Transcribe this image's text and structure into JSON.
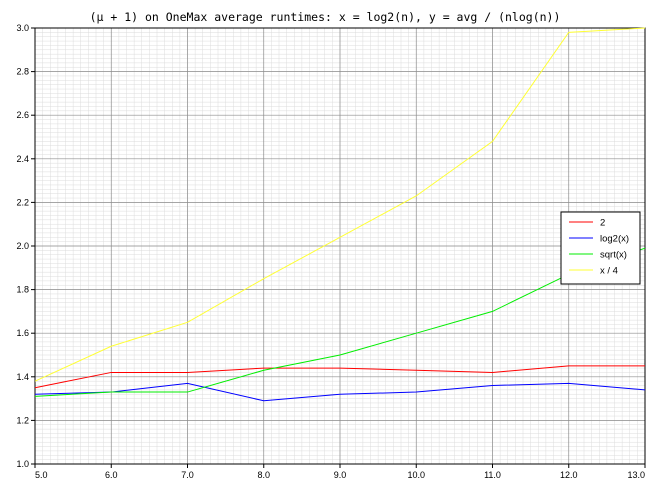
{
  "chart_data": {
    "type": "line",
    "title": "(µ + 1) on OneMax average runtimes: x = log2(n), y = avg / (nlog(n))",
    "xlabel": "",
    "ylabel": "",
    "xlim": [
      5.0,
      13.0
    ],
    "ylim": [
      1.0,
      3.0
    ],
    "x_ticks": [
      "5.0",
      "6.0",
      "7.0",
      "8.0",
      "9.0",
      "10.0",
      "11.0",
      "12.0",
      "13.0"
    ],
    "y_ticks": [
      "1.0",
      "1.2",
      "1.4",
      "1.6",
      "1.8",
      "2.0",
      "2.2",
      "2.4",
      "2.6",
      "2.8",
      "3.0"
    ],
    "grid": true,
    "legend_position": "right",
    "x": [
      5,
      6,
      7,
      8,
      9,
      10,
      11,
      12,
      13
    ],
    "series": [
      {
        "name": "2",
        "color": "#ff0000",
        "values": [
          1.35,
          1.42,
          1.42,
          1.44,
          1.44,
          1.43,
          1.42,
          1.45,
          1.45
        ]
      },
      {
        "name": "log2(x)",
        "color": "#0000ff",
        "values": [
          1.32,
          1.33,
          1.37,
          1.29,
          1.32,
          1.33,
          1.36,
          1.37,
          1.34
        ]
      },
      {
        "name": "sqrt(x)",
        "color": "#00ee00",
        "values": [
          1.31,
          1.33,
          1.33,
          1.43,
          1.5,
          1.6,
          1.7,
          1.87,
          1.99
        ]
      },
      {
        "name": "x / 4",
        "color": "#ffff33",
        "values": [
          1.38,
          1.54,
          1.65,
          1.85,
          2.04,
          2.23,
          2.48,
          2.98,
          3.0
        ]
      }
    ]
  }
}
